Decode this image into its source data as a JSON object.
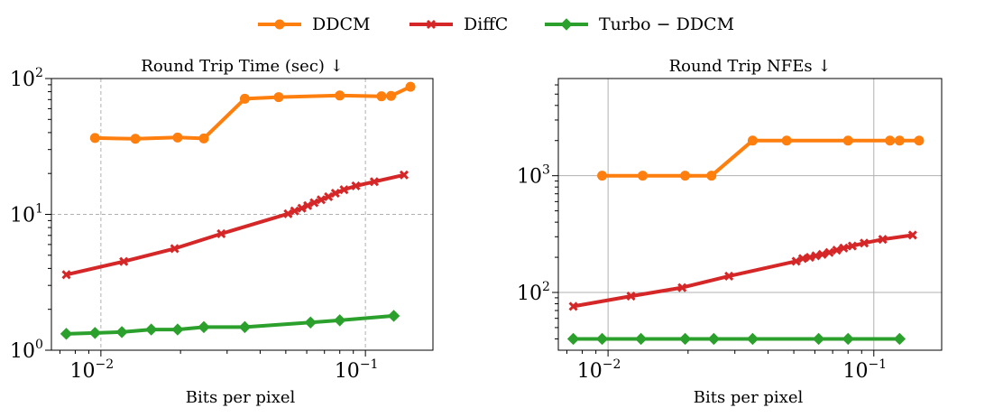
{
  "colors": {
    "DDCM": "#ff7f0e",
    "DiffC": "#d62728",
    "Turbo-DDCM": "#2ca02c",
    "grid": "#b0b0b0"
  },
  "legend": [
    {
      "name": "DDCM",
      "marker": "circle"
    },
    {
      "name": "DiffC",
      "marker": "x"
    },
    {
      "name": "Turbo − DDCM",
      "marker": "diamond"
    }
  ],
  "chart_data": [
    {
      "type": "line",
      "title": "Round Trip Time (sec) ↓",
      "xlabel": "Bits per pixel",
      "ylabel": "",
      "xscale": "log",
      "yscale": "log",
      "xlim": [
        0.0065,
        0.18
      ],
      "ylim": [
        1,
        100
      ],
      "grid": "dashed",
      "xticks": [
        {
          "base": "10",
          "exp": "−2",
          "value": 0.01
        },
        {
          "base": "10",
          "exp": "−1",
          "value": 0.1
        }
      ],
      "yticks": [
        {
          "base": "10",
          "exp": "0",
          "value": 1
        },
        {
          "base": "10",
          "exp": "1",
          "value": 10
        },
        {
          "base": "10",
          "exp": "2",
          "value": 100
        }
      ],
      "series": [
        {
          "name": "DDCM",
          "marker": "circle",
          "x": [
            0.0095,
            0.0135,
            0.0195,
            0.0245,
            0.035,
            0.047,
            0.08,
            0.115,
            0.125,
            0.148
          ],
          "y": [
            36.5,
            36,
            36.8,
            36.2,
            71,
            73,
            75,
            74,
            74.5,
            87
          ]
        },
        {
          "name": "DiffC",
          "marker": "x",
          "x": [
            0.0074,
            0.0122,
            0.019,
            0.0285,
            0.051,
            0.054,
            0.0575,
            0.0605,
            0.064,
            0.068,
            0.0725,
            0.077,
            0.083,
            0.092,
            0.108,
            0.14
          ],
          "y": [
            3.6,
            4.5,
            5.6,
            7.2,
            10.1,
            10.6,
            11.1,
            11.6,
            12.2,
            12.8,
            13.5,
            14.3,
            15.2,
            16.2,
            17.4,
            19.5
          ]
        },
        {
          "name": "Turbo − DDCM",
          "marker": "diamond",
          "x": [
            0.0074,
            0.0095,
            0.012,
            0.0155,
            0.0195,
            0.0245,
            0.035,
            0.062,
            0.08,
            0.128
          ],
          "y": [
            1.32,
            1.34,
            1.36,
            1.42,
            1.42,
            1.48,
            1.48,
            1.6,
            1.66,
            1.79
          ]
        }
      ]
    },
    {
      "type": "line",
      "title": "Round Trip NFEs ↓",
      "xlabel": "Bits per pixel",
      "ylabel": "",
      "xscale": "log",
      "yscale": "log",
      "xlim": [
        0.0065,
        0.18
      ],
      "ylim": [
        32,
        6800
      ],
      "grid": "solid",
      "xticks": [
        {
          "base": "10",
          "exp": "−2",
          "value": 0.01
        },
        {
          "base": "10",
          "exp": "−1",
          "value": 0.1
        }
      ],
      "yticks": [
        {
          "base": "10",
          "exp": "2",
          "value": 100
        },
        {
          "base": "10",
          "exp": "3",
          "value": 1000
        }
      ],
      "series": [
        {
          "name": "DDCM",
          "marker": "circle",
          "x": [
            0.0095,
            0.0135,
            0.0195,
            0.0245,
            0.035,
            0.047,
            0.08,
            0.115,
            0.125,
            0.148
          ],
          "y": [
            1000,
            1000,
            1000,
            1000,
            2000,
            2000,
            2000,
            2000,
            2000,
            2000
          ]
        },
        {
          "name": "DiffC",
          "marker": "x",
          "x": [
            0.0074,
            0.0122,
            0.019,
            0.0285,
            0.051,
            0.054,
            0.0575,
            0.0605,
            0.064,
            0.068,
            0.0725,
            0.077,
            0.083,
            0.092,
            0.108,
            0.14
          ],
          "y": [
            76,
            93,
            110,
            138,
            185,
            195,
            200,
            206,
            212,
            220,
            230,
            240,
            250,
            265,
            285,
            310
          ]
        },
        {
          "name": "Turbo − DDCM",
          "marker": "diamond",
          "x": [
            0.0074,
            0.0095,
            0.0133,
            0.0195,
            0.025,
            0.035,
            0.062,
            0.08,
            0.125
          ],
          "y": [
            40,
            40,
            40,
            40,
            40,
            40,
            40,
            40,
            40
          ]
        }
      ]
    }
  ]
}
